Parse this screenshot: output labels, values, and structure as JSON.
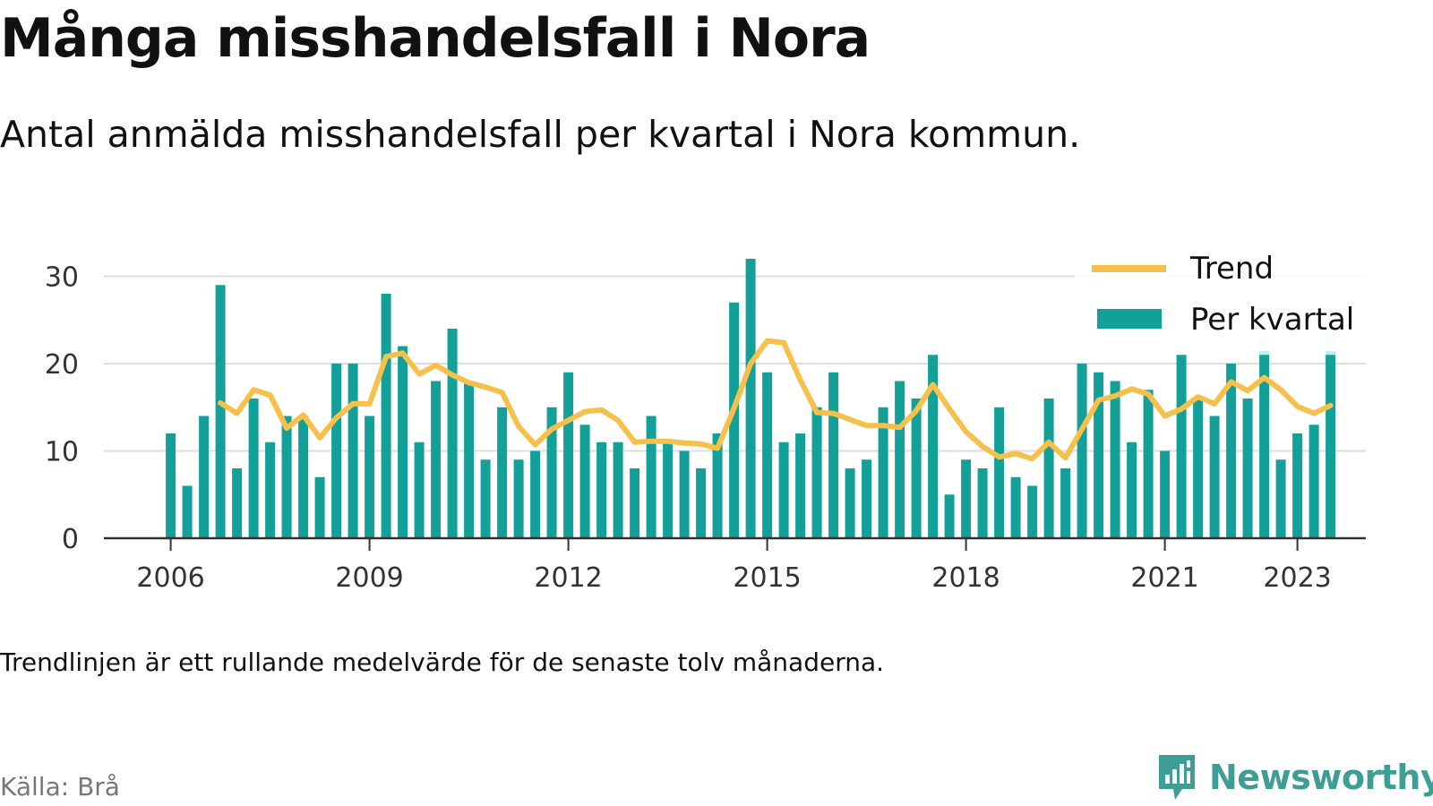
{
  "title": "Många misshandelsfall i Nora",
  "subtitle": "Antal anmälda misshandelsfall per kvartal i Nora kommun.",
  "note": "Trendlinjen är ett rullande medelvärde för de senaste tolv månaderna.",
  "source": "Källa: Brå",
  "brand": {
    "name": "Newsworthy",
    "icon": "bar-chart-logo-icon",
    "color": "#3d9e96"
  },
  "colors": {
    "bars": "#13a099",
    "bars_preliminary": "#c9ecea",
    "trend": "#f7c04a",
    "grid": "#dddddd",
    "axis": "#333333",
    "text": "#111111",
    "muted": "#777777"
  },
  "chart_data": {
    "type": "bar",
    "title": "Många misshandelsfall i Nora",
    "xlabel": "",
    "ylabel": "",
    "ylim": [
      0,
      33
    ],
    "yticks": [
      0,
      10,
      20,
      30
    ],
    "xticks": [
      "2006",
      "2009",
      "2012",
      "2015",
      "2018",
      "2021",
      "2023"
    ],
    "grid": true,
    "legend_position": "top-right",
    "start_quarter": "2006 Q1",
    "categories": [
      "2006 Q1",
      "2006 Q2",
      "2006 Q3",
      "2006 Q4",
      "2007 Q1",
      "2007 Q2",
      "2007 Q3",
      "2007 Q4",
      "2008 Q1",
      "2008 Q2",
      "2008 Q3",
      "2008 Q4",
      "2009 Q1",
      "2009 Q2",
      "2009 Q3",
      "2009 Q4",
      "2010 Q1",
      "2010 Q2",
      "2010 Q3",
      "2010 Q4",
      "2011 Q1",
      "2011 Q2",
      "2011 Q3",
      "2011 Q4",
      "2012 Q1",
      "2012 Q2",
      "2012 Q3",
      "2012 Q4",
      "2013 Q1",
      "2013 Q2",
      "2013 Q3",
      "2013 Q4",
      "2014 Q1",
      "2014 Q2",
      "2014 Q3",
      "2014 Q4",
      "2015 Q1",
      "2015 Q2",
      "2015 Q3",
      "2015 Q4",
      "2016 Q1",
      "2016 Q2",
      "2016 Q3",
      "2016 Q4",
      "2017 Q1",
      "2017 Q2",
      "2017 Q3",
      "2017 Q4",
      "2018 Q1",
      "2018 Q2",
      "2018 Q3",
      "2018 Q4",
      "2019 Q1",
      "2019 Q2",
      "2019 Q3",
      "2019 Q4",
      "2020 Q1",
      "2020 Q2",
      "2020 Q3",
      "2020 Q4",
      "2021 Q1",
      "2021 Q2",
      "2021 Q3",
      "2021 Q4",
      "2022 Q1",
      "2022 Q2",
      "2022 Q3",
      "2022 Q4",
      "2023 Q1",
      "2023 Q2",
      "2023 Q3"
    ],
    "series": [
      {
        "name": "Per kvartal",
        "type": "bar",
        "values": [
          12,
          6,
          14,
          29,
          8,
          16,
          11,
          14,
          14,
          7,
          20,
          20,
          14,
          28,
          22,
          11,
          18,
          24,
          18,
          9,
          15,
          9,
          10,
          15,
          19,
          13,
          11,
          11,
          8,
          14,
          11,
          10,
          8,
          12,
          27,
          32,
          19,
          11,
          12,
          15,
          19,
          8,
          9,
          15,
          18,
          16,
          21,
          5,
          9,
          8,
          15,
          7,
          6,
          16,
          8,
          20,
          19,
          18,
          11,
          17,
          10,
          21,
          16,
          14,
          20,
          16,
          23,
          9,
          12,
          13,
          26
        ],
        "preliminary_values": [
          null,
          null,
          null,
          null,
          null,
          null,
          null,
          null,
          null,
          null,
          null,
          null,
          null,
          null,
          null,
          null,
          null,
          null,
          null,
          null,
          null,
          null,
          null,
          null,
          null,
          null,
          null,
          null,
          null,
          null,
          null,
          null,
          null,
          null,
          null,
          null,
          null,
          null,
          null,
          null,
          null,
          null,
          null,
          null,
          null,
          null,
          null,
          null,
          null,
          null,
          null,
          null,
          null,
          null,
          null,
          null,
          null,
          null,
          null,
          null,
          null,
          null,
          null,
          null,
          null,
          null,
          21,
          null,
          null,
          null,
          21
        ]
      },
      {
        "name": "Trend",
        "type": "line",
        "values": [
          null,
          null,
          null,
          15.5,
          14.3,
          17.0,
          16.4,
          12.6,
          14.1,
          11.5,
          13.8,
          15.4,
          15.4,
          20.8,
          21.2,
          18.8,
          19.8,
          18.7,
          17.8,
          17.3,
          16.7,
          12.8,
          10.7,
          12.5,
          13.5,
          14.5,
          14.7,
          13.5,
          11.0,
          11.1,
          11.1,
          10.9,
          10.8,
          10.3,
          14.9,
          20.0,
          22.6,
          22.4,
          18.1,
          14.4,
          14.3,
          13.6,
          12.9,
          12.9,
          12.7,
          14.6,
          17.6,
          14.8,
          12.2,
          10.5,
          9.3,
          9.7,
          9.1,
          11.0,
          9.2,
          12.5,
          15.8,
          16.3,
          17.1,
          16.5,
          14.0,
          14.8,
          16.2,
          15.4,
          17.9,
          16.9,
          18.4,
          17.0,
          15.1,
          14.3,
          15.2
        ]
      }
    ]
  }
}
